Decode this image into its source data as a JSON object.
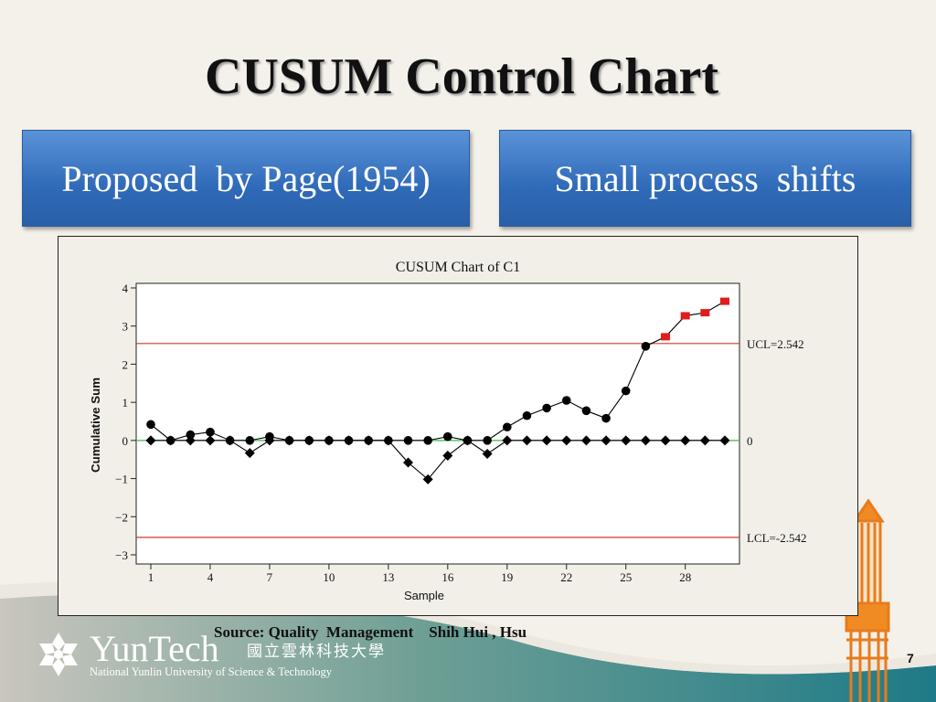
{
  "slide": {
    "title": "CUSUM Control Chart",
    "box_left": "Proposed  by Page(1954)",
    "box_right": "Small process  shifts",
    "source": "Source: Quality  Management    Shih Hui , Hsu",
    "page_number": "7",
    "logo": {
      "name": "YunTech",
      "chinese": "國立雲林科技大學",
      "subtitle": "National Yunlin University of Science & Technology"
    }
  },
  "chart_data": {
    "type": "line",
    "title": "CUSUM Chart of C1",
    "xlabel": "Sample",
    "ylabel": "Cumulative Sum",
    "xlim": [
      1,
      30
    ],
    "ylim": [
      -3,
      4
    ],
    "x_ticks": [
      1,
      4,
      7,
      10,
      13,
      16,
      19,
      22,
      25,
      28
    ],
    "y_ticks": [
      -3,
      -2,
      -1,
      0,
      1,
      2,
      3,
      4
    ],
    "reference_lines": [
      {
        "label": "UCL=2.542",
        "value": 2.542,
        "color": "#d03a2a"
      },
      {
        "label": "0",
        "value": 0,
        "color": "#3cb84a"
      },
      {
        "label": "LCL=-2.542",
        "value": -2.542,
        "color": "#d03a2a"
      }
    ],
    "series": [
      {
        "marker": "circle",
        "color": "#000000",
        "x": [
          1,
          2,
          3,
          4,
          5,
          6,
          7,
          8,
          9,
          10,
          11,
          12,
          13,
          14,
          15,
          16,
          17,
          18,
          19,
          20,
          21,
          22,
          23,
          24,
          25,
          26,
          27,
          28,
          29,
          30
        ],
        "values": [
          0.42,
          0.0,
          0.15,
          0.22,
          0.0,
          0.0,
          0.1,
          0.0,
          0.0,
          0.0,
          0.0,
          0.0,
          0.0,
          0.0,
          0.0,
          0.1,
          0.0,
          0.0,
          0.35,
          0.65,
          0.85,
          1.05,
          0.78,
          0.58,
          1.3,
          2.47,
          2.72,
          3.27,
          3.35,
          3.65
        ],
        "out_of_control": [
          27,
          28,
          29,
          30
        ]
      },
      {
        "marker": "diamond",
        "color": "#000000",
        "x": [
          1,
          2,
          3,
          4,
          5,
          6,
          7,
          8,
          9,
          10,
          11,
          12,
          13,
          14,
          15,
          16,
          17,
          18,
          19,
          20,
          21,
          22,
          23,
          24,
          25,
          26,
          27,
          28,
          29,
          30
        ],
        "values": [
          0,
          0,
          0,
          0,
          0,
          -0.33,
          0,
          0,
          0,
          0,
          0,
          0,
          0,
          -0.58,
          -1.02,
          -0.4,
          0,
          -0.35,
          0,
          0,
          0,
          0,
          0,
          0,
          0,
          0,
          0,
          0,
          0,
          0
        ]
      }
    ],
    "out_of_control_color": "#e01c1c"
  }
}
